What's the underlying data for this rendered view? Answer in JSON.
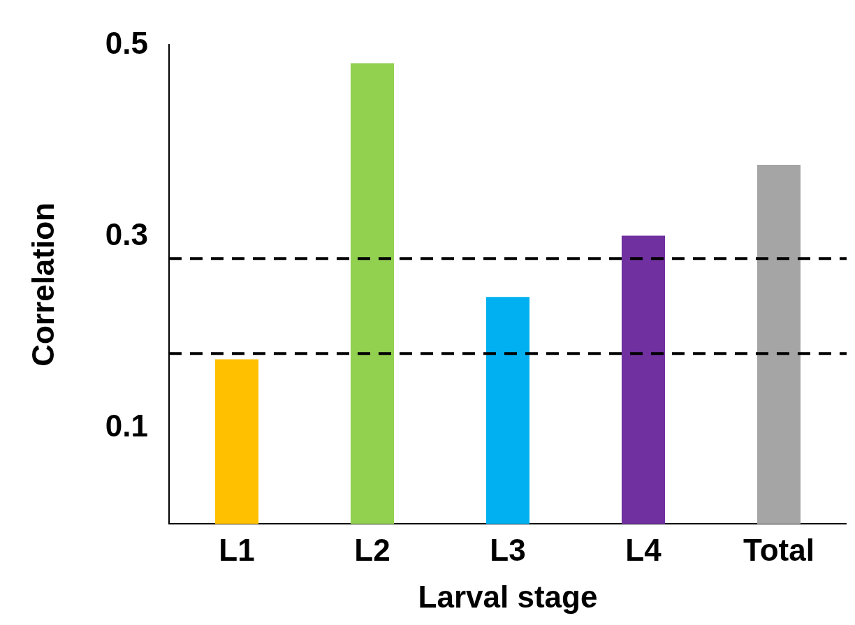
{
  "chart_data": {
    "type": "bar",
    "xlabel": "Larval stage",
    "ylabel": "Correlation",
    "categories": [
      "L1",
      "L2",
      "L3",
      "L4",
      "Total"
    ],
    "values": [
      0.172,
      0.481,
      0.237,
      0.301,
      0.375
    ],
    "colors": [
      "#ffc000",
      "#92d050",
      "#00b0f0",
      "#7030a0",
      "#a5a5a5"
    ],
    "ylim": [
      0,
      0.5
    ],
    "yticks": [
      0.1,
      0.3,
      0.5
    ],
    "grid": false,
    "legend": false,
    "ref_lines": [
      {
        "axis": "y",
        "value": 0.277,
        "color": "#000000",
        "line_style": "dashed"
      },
      {
        "axis": "y",
        "value": 0.178,
        "color": "#000000",
        "line_style": "dashed"
      }
    ]
  }
}
